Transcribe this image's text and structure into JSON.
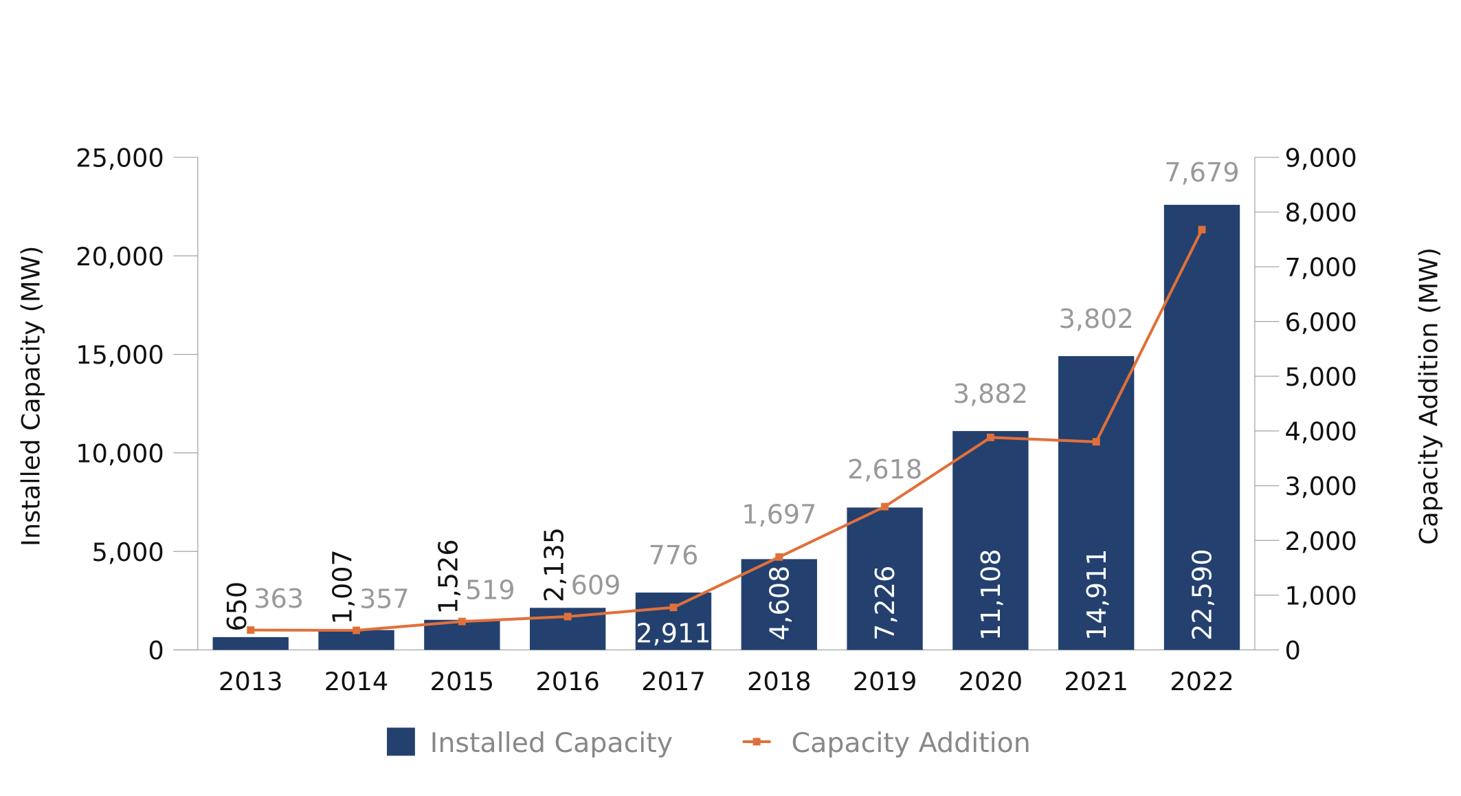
{
  "chart_data": {
    "type": "bar+line",
    "categories": [
      "2013",
      "2014",
      "2015",
      "2016",
      "2017",
      "2018",
      "2019",
      "2020",
      "2021",
      "2022"
    ],
    "series": [
      {
        "name": "Installed Capacity",
        "type": "bar",
        "axis": "left",
        "color": "#23406f",
        "values": [
          650,
          1007,
          1526,
          2135,
          2911,
          4608,
          7226,
          11108,
          14911,
          22590
        ],
        "labels": [
          "650",
          "1,007",
          "1,526",
          "2,135",
          "2,911",
          "4,608",
          "7,226",
          "11,108",
          "14,911",
          "22,590"
        ]
      },
      {
        "name": "Capacity Addition",
        "type": "line",
        "axis": "right",
        "color": "#e0703a",
        "values": [
          363,
          357,
          519,
          609,
          776,
          1697,
          2618,
          3882,
          3802,
          7679
        ],
        "labels": [
          "363",
          "357",
          "519",
          "609",
          "776",
          "1,697",
          "2,618",
          "3,882",
          "3,802",
          "7,679"
        ]
      }
    ],
    "ylabel": "Installed Capacity (MW)",
    "y2label": "Capacity Addition (MW)",
    "ylim": [
      0,
      25000
    ],
    "y2lim": [
      0,
      9000
    ],
    "yticks": [
      "0",
      "5,000",
      "10,000",
      "15,000",
      "20,000",
      "25,000"
    ],
    "y2ticks": [
      "0",
      "1,000",
      "2,000",
      "3,000",
      "4,000",
      "5,000",
      "6,000",
      "7,000",
      "8,000",
      "9,000"
    ],
    "grid": false,
    "legend": "bottom"
  }
}
